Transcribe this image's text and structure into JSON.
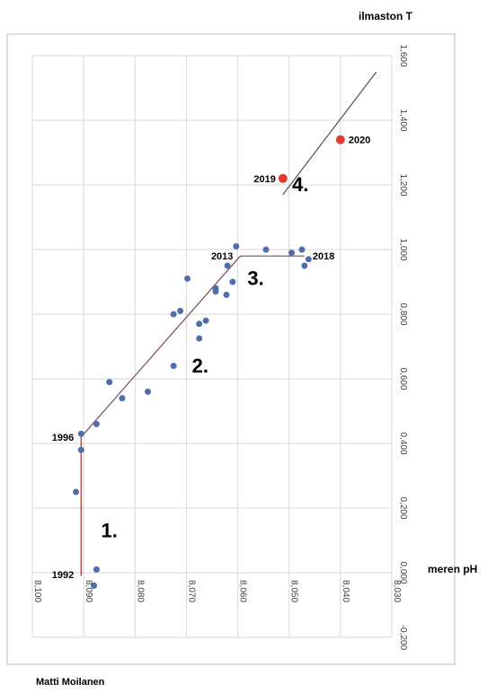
{
  "chart_data": {
    "type": "scatter",
    "title": "",
    "xlabel": "meren pH",
    "ylabel": "ilmaston T",
    "x_reversed": true,
    "xlim": [
      8.1,
      8.03
    ],
    "ylim": [
      -0.2,
      1.6
    ],
    "grid": true,
    "x_ticks": [
      "8,100",
      "8,090",
      "8,080",
      "8,070",
      "8,060",
      "8,050",
      "8,040",
      "8,030"
    ],
    "y_ticks": [
      "-0,200",
      "0,000",
      "0,200",
      "0,400",
      "0,600",
      "0,800",
      "1,000",
      "1,200",
      "1,400",
      "1,600"
    ],
    "series": [
      {
        "color": "#4f6fa8",
        "points": [
          {
            "x": 8.0875,
            "y": 0.01
          },
          {
            "x": 8.088,
            "y": -0.04
          },
          {
            "x": 8.0915,
            "y": 0.25
          },
          {
            "x": 8.0905,
            "y": 0.38
          },
          {
            "x": 8.0905,
            "y": 0.43
          },
          {
            "x": 8.0875,
            "y": 0.46
          },
          {
            "x": 8.085,
            "y": 0.59
          },
          {
            "x": 8.0825,
            "y": 0.54
          },
          {
            "x": 8.0775,
            "y": 0.56
          },
          {
            "x": 8.0725,
            "y": 0.64
          },
          {
            "x": 8.0725,
            "y": 0.8
          },
          {
            "x": 8.0712,
            "y": 0.81
          },
          {
            "x": 8.0698,
            "y": 0.91
          },
          {
            "x": 8.0675,
            "y": 0.77
          },
          {
            "x": 8.0675,
            "y": 0.725
          },
          {
            "x": 8.0662,
            "y": 0.78
          },
          {
            "x": 8.0643,
            "y": 0.87
          },
          {
            "x": 8.0643,
            "y": 0.88
          },
          {
            "x": 8.0622,
            "y": 0.86
          },
          {
            "x": 8.062,
            "y": 0.95
          },
          {
            "x": 8.061,
            "y": 0.9
          },
          {
            "x": 8.0603,
            "y": 1.01
          },
          {
            "x": 8.0545,
            "y": 1.0
          },
          {
            "x": 8.0495,
            "y": 0.99
          },
          {
            "x": 8.0475,
            "y": 1.0
          },
          {
            "x": 8.047,
            "y": 0.95
          },
          {
            "x": 8.0462,
            "y": 0.97
          }
        ]
      },
      {
        "color": "#e03c31",
        "points": [
          {
            "x": 8.0512,
            "y": 1.22
          },
          {
            "x": 8.04,
            "y": 1.34
          }
        ]
      }
    ],
    "trend_lines": [
      {
        "color": "#a03030",
        "points": [
          [
            8.0905,
            -0.01
          ],
          [
            8.0905,
            0.42
          ]
        ]
      },
      {
        "color": "#7a4a5a",
        "points": [
          [
            8.0905,
            0.42
          ],
          [
            8.0595,
            0.98
          ]
        ]
      },
      {
        "color": "#7a4a5a",
        "points": [
          [
            8.0595,
            0.98
          ],
          [
            8.047,
            0.98
          ]
        ]
      },
      {
        "color": "#505050",
        "points": [
          [
            8.0512,
            1.17
          ],
          [
            8.033,
            1.55
          ]
        ]
      }
    ],
    "point_labels": [
      {
        "text": "1992",
        "x": 8.0905,
        "y": -0.005,
        "anchor": "end"
      },
      {
        "text": "1996",
        "x": 8.0905,
        "y": 0.42,
        "anchor": "end"
      },
      {
        "text": "2013",
        "x": 8.0595,
        "y": 0.98,
        "anchor": "end"
      },
      {
        "text": "2018",
        "x": 8.047,
        "y": 0.98,
        "anchor": "start"
      },
      {
        "text": "2019",
        "x": 8.0512,
        "y": 1.22,
        "anchor": "end"
      },
      {
        "text": "2020",
        "x": 8.04,
        "y": 1.34,
        "anchor": "start"
      }
    ],
    "phase_labels": [
      {
        "text": "1.",
        "x": 8.085,
        "y": 0.11
      },
      {
        "text": "2.",
        "x": 8.0673,
        "y": 0.62
      },
      {
        "text": "3.",
        "x": 8.0565,
        "y": 0.89
      },
      {
        "text": "4.",
        "x": 8.0478,
        "y": 1.18
      }
    ],
    "author": "Matti Moilanen"
  }
}
